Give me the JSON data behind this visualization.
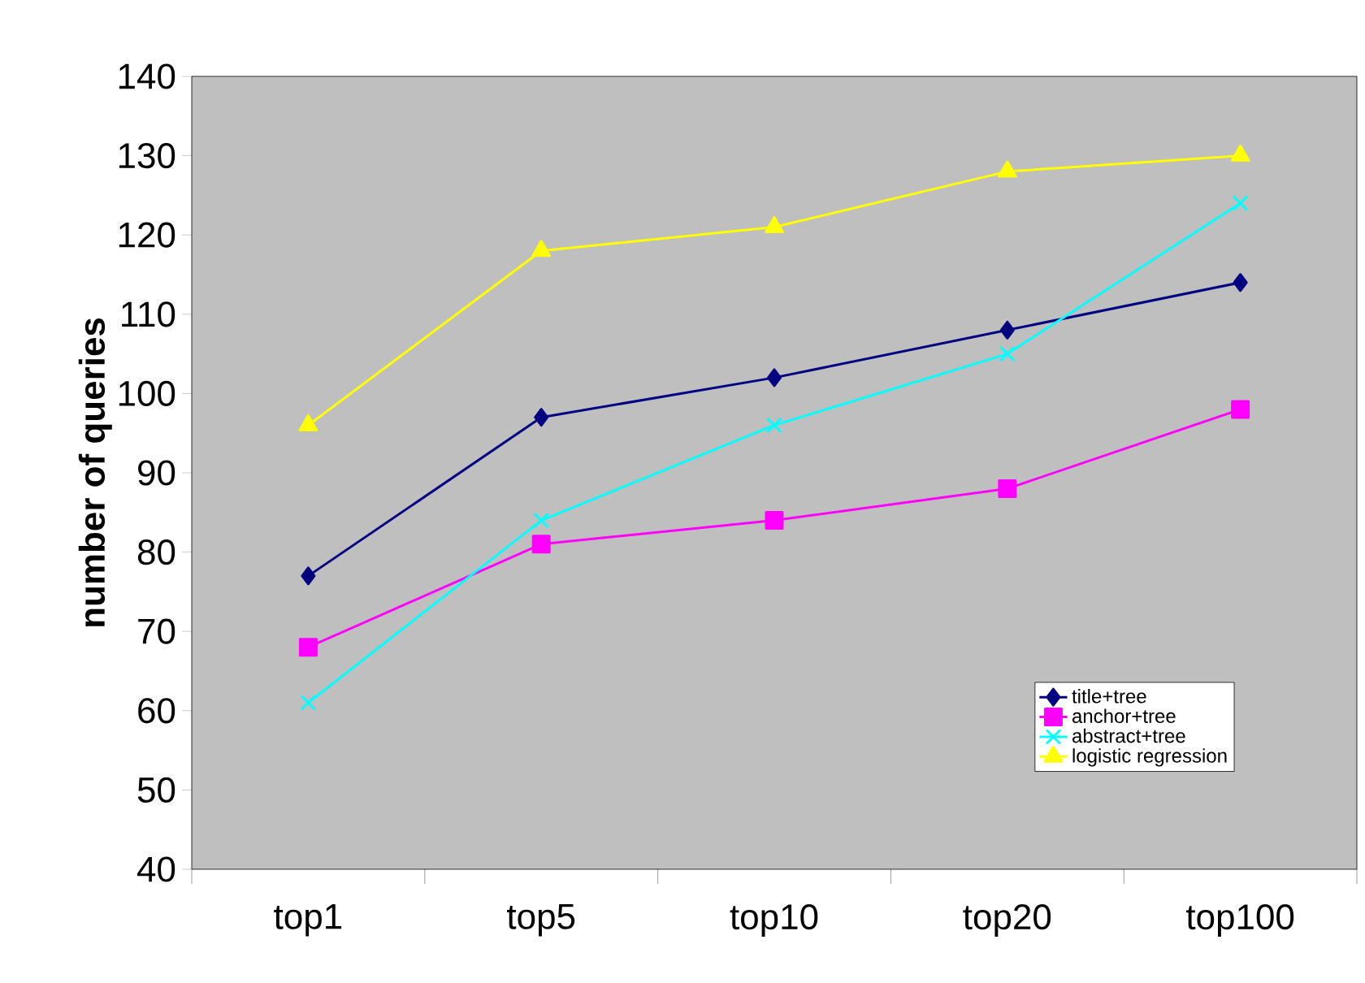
{
  "chart_data": {
    "type": "line",
    "ylabel": "number of queries",
    "categories": [
      "top1",
      "top5",
      "top10",
      "top20",
      "top100"
    ],
    "ylim": [
      40,
      140
    ],
    "yticks": [
      40,
      50,
      60,
      70,
      80,
      90,
      100,
      110,
      120,
      130,
      140
    ],
    "grid": false,
    "legend": "bottom right",
    "line_style": "solid",
    "series": [
      {
        "name": "title+tree",
        "color": "#000080",
        "marker": "diamond",
        "values": [
          77,
          97,
          102,
          108,
          114
        ]
      },
      {
        "name": "anchor+tree",
        "color": "#ff00ff",
        "marker": "square",
        "values": [
          68,
          81,
          84,
          88,
          98
        ]
      },
      {
        "name": "abstract+tree",
        "color": "#00ffff",
        "marker": "cross",
        "values": [
          61,
          84,
          96,
          105,
          124
        ]
      },
      {
        "name": "logistic regression",
        "color": "#ffff00",
        "marker": "triangle",
        "values": [
          96,
          118,
          121,
          128,
          130
        ]
      }
    ]
  }
}
